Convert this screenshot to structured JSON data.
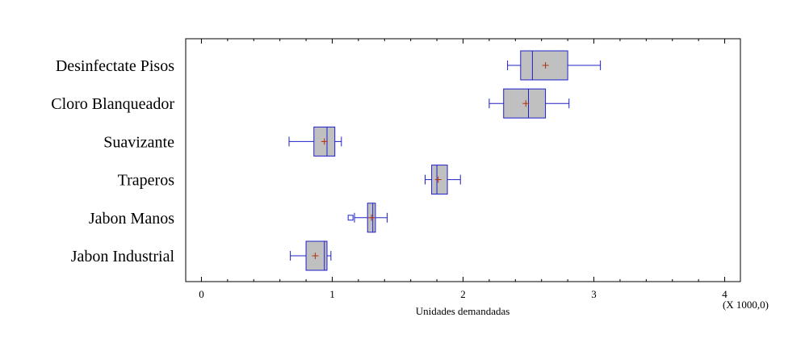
{
  "chart_data": {
    "type": "boxplot",
    "orientation": "horizontal",
    "xlabel": "Unidades demandadas",
    "x_multiplier_label": "(X 1000,0)",
    "xlim": [
      -0.12,
      4.12
    ],
    "xticks": [
      0,
      1,
      2,
      3,
      4
    ],
    "xtick_labels": [
      "0",
      "1",
      "2",
      "3",
      "4"
    ],
    "grid": false,
    "colors": {
      "box_fill": "#c0c0c0",
      "box_stroke": "#1f1fc8",
      "mean_marker": "#b03010",
      "frame": "#000000"
    },
    "categories": [
      "Desinfectate Pisos",
      "Cloro Blanqueador",
      "Suavizante",
      "Traperos",
      "Jabon Manos",
      "Jabon Industrial"
    ],
    "boxes": [
      {
        "label": "Desinfectate Pisos",
        "whisker_low": 2.34,
        "q1": 2.44,
        "median": 2.53,
        "q3": 2.8,
        "whisker_high": 3.05,
        "mean": 2.63,
        "outliers": []
      },
      {
        "label": "Cloro Blanqueador",
        "whisker_low": 2.2,
        "q1": 2.31,
        "median": 2.5,
        "q3": 2.63,
        "whisker_high": 2.81,
        "mean": 2.48,
        "outliers": []
      },
      {
        "label": "Suavizante",
        "whisker_low": 0.67,
        "q1": 0.86,
        "median": 0.96,
        "q3": 1.02,
        "whisker_high": 1.07,
        "mean": 0.94,
        "outliers": []
      },
      {
        "label": "Traperos",
        "whisker_low": 1.71,
        "q1": 1.76,
        "median": 1.8,
        "q3": 1.88,
        "whisker_high": 1.98,
        "mean": 1.81,
        "outliers": []
      },
      {
        "label": "Jabon Manos",
        "whisker_low": 1.17,
        "q1": 1.27,
        "median": 1.31,
        "q3": 1.33,
        "whisker_high": 1.42,
        "mean": 1.3,
        "outliers": [
          1.14
        ]
      },
      {
        "label": "Jabon Industrial",
        "whisker_low": 0.68,
        "q1": 0.8,
        "median": 0.94,
        "q3": 0.96,
        "whisker_high": 0.99,
        "mean": 0.87,
        "outliers": []
      }
    ]
  }
}
